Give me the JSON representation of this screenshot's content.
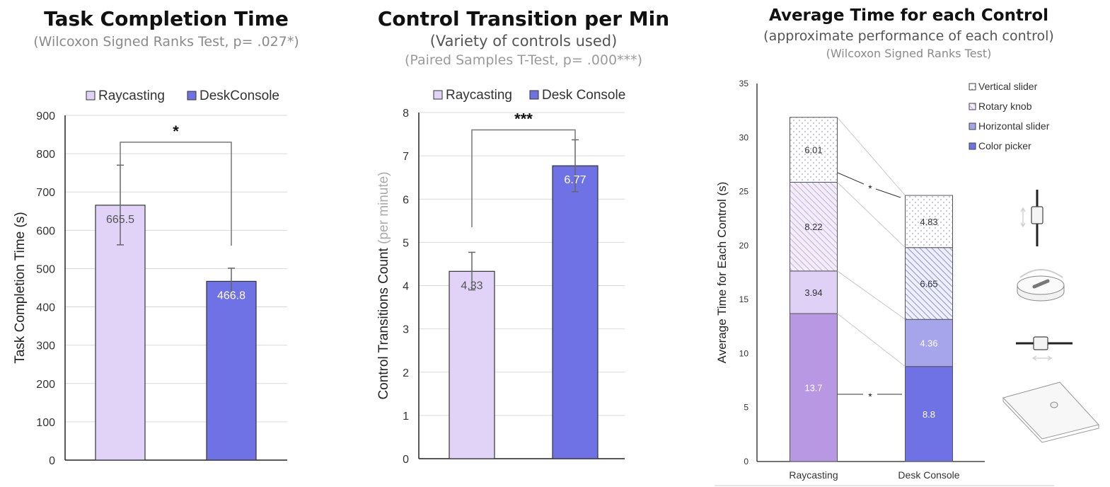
{
  "chart_data": [
    {
      "type": "bar",
      "title": "Task Completion Time",
      "subtitle": "(Wilcoxon Signed Ranks Test, p= .027*)",
      "ylabel": "Task Completion Time (s)",
      "ylim": [
        0,
        900
      ],
      "yticks": [
        0,
        100,
        200,
        300,
        400,
        500,
        600,
        700,
        800,
        900
      ],
      "grid": true,
      "legend_position": "top",
      "categories": [
        "Raycasting",
        "DeskConsole"
      ],
      "values": [
        665.5,
        466.8
      ],
      "value_labels": [
        "665.5",
        "466.8"
      ],
      "error_bars": [
        [
          562,
          770
        ],
        [
          432,
          501
        ]
      ],
      "colors": [
        "#e0d3f7",
        "#6e72e4"
      ],
      "significance": {
        "marker": "*",
        "bracket_ends": [
          770,
          560
        ],
        "bracket_top": 830
      }
    },
    {
      "type": "bar",
      "title": "Control Transition per Min",
      "subtitle": "(Variety of controls used)",
      "subtitle2": "(Paired Samples T-Test, p= .000***)",
      "ylabel": "Control Transitions Count",
      "ylabel_unit": "(per minute)",
      "ylim": [
        0,
        8
      ],
      "yticks": [
        0,
        1,
        2,
        3,
        4,
        5,
        6,
        7,
        8
      ],
      "grid": true,
      "legend_position": "top",
      "categories": [
        "Raycasting",
        "Desk Console"
      ],
      "values": [
        4.33,
        6.77
      ],
      "value_labels": [
        "4.33",
        "6.77"
      ],
      "error_bars": [
        [
          3.9,
          4.77
        ],
        [
          6.17,
          7.37
        ]
      ],
      "colors": [
        "#e0d3f7",
        "#6e72e4"
      ],
      "significance": {
        "marker": "***",
        "bracket_ends": [
          5.35,
          7.37
        ],
        "bracket_top": 7.6
      }
    },
    {
      "type": "bar",
      "stacked": true,
      "title": "Average Time for each Control",
      "subtitle": "(approximate performance of each control)",
      "subtitle2": "(Wilcoxon Signed Ranks Test)",
      "ylabel": "Average Time for Each Control (s)",
      "ylim": [
        0,
        35
      ],
      "yticks": [
        0,
        5,
        10,
        15,
        20,
        25,
        30,
        35
      ],
      "grid": false,
      "legend_position": "top-right",
      "categories": [
        "Raycasting",
        "Desk Console"
      ],
      "series": [
        {
          "name": "Color picker",
          "values": [
            13.7,
            8.8
          ],
          "labels": [
            "13.7",
            "8.8"
          ],
          "color": "#b898e3",
          "color2": "#6e72e4",
          "pattern": "solid"
        },
        {
          "name": "Horizontal slider",
          "values": [
            3.94,
            4.36
          ],
          "labels": [
            "3.94",
            "4.36"
          ],
          "color": "#dfd0f6",
          "color2": "#a6a5ec",
          "pattern": "solid"
        },
        {
          "name": "Rotary knob",
          "values": [
            8.22,
            6.65
          ],
          "labels": [
            "8.22",
            "6.65"
          ],
          "color": "#b99ce5",
          "color2": "#7b78e0",
          "pattern": "hatch"
        },
        {
          "name": "Vertical slider",
          "values": [
            6.01,
            4.83
          ],
          "labels": [
            "6.01",
            "4.83"
          ],
          "color": "#9aa0d6",
          "color2": "#9aa0d6",
          "pattern": "dots"
        }
      ],
      "legend_order": [
        "Vertical slider",
        "Rotary knob",
        "Horizontal slider",
        "Color picker"
      ],
      "significance_marks": [
        "*",
        "*"
      ],
      "icons": [
        "vertical-slider-icon",
        "rotary-knob-icon",
        "horizontal-slider-icon",
        "color-picker-icon"
      ]
    }
  ]
}
